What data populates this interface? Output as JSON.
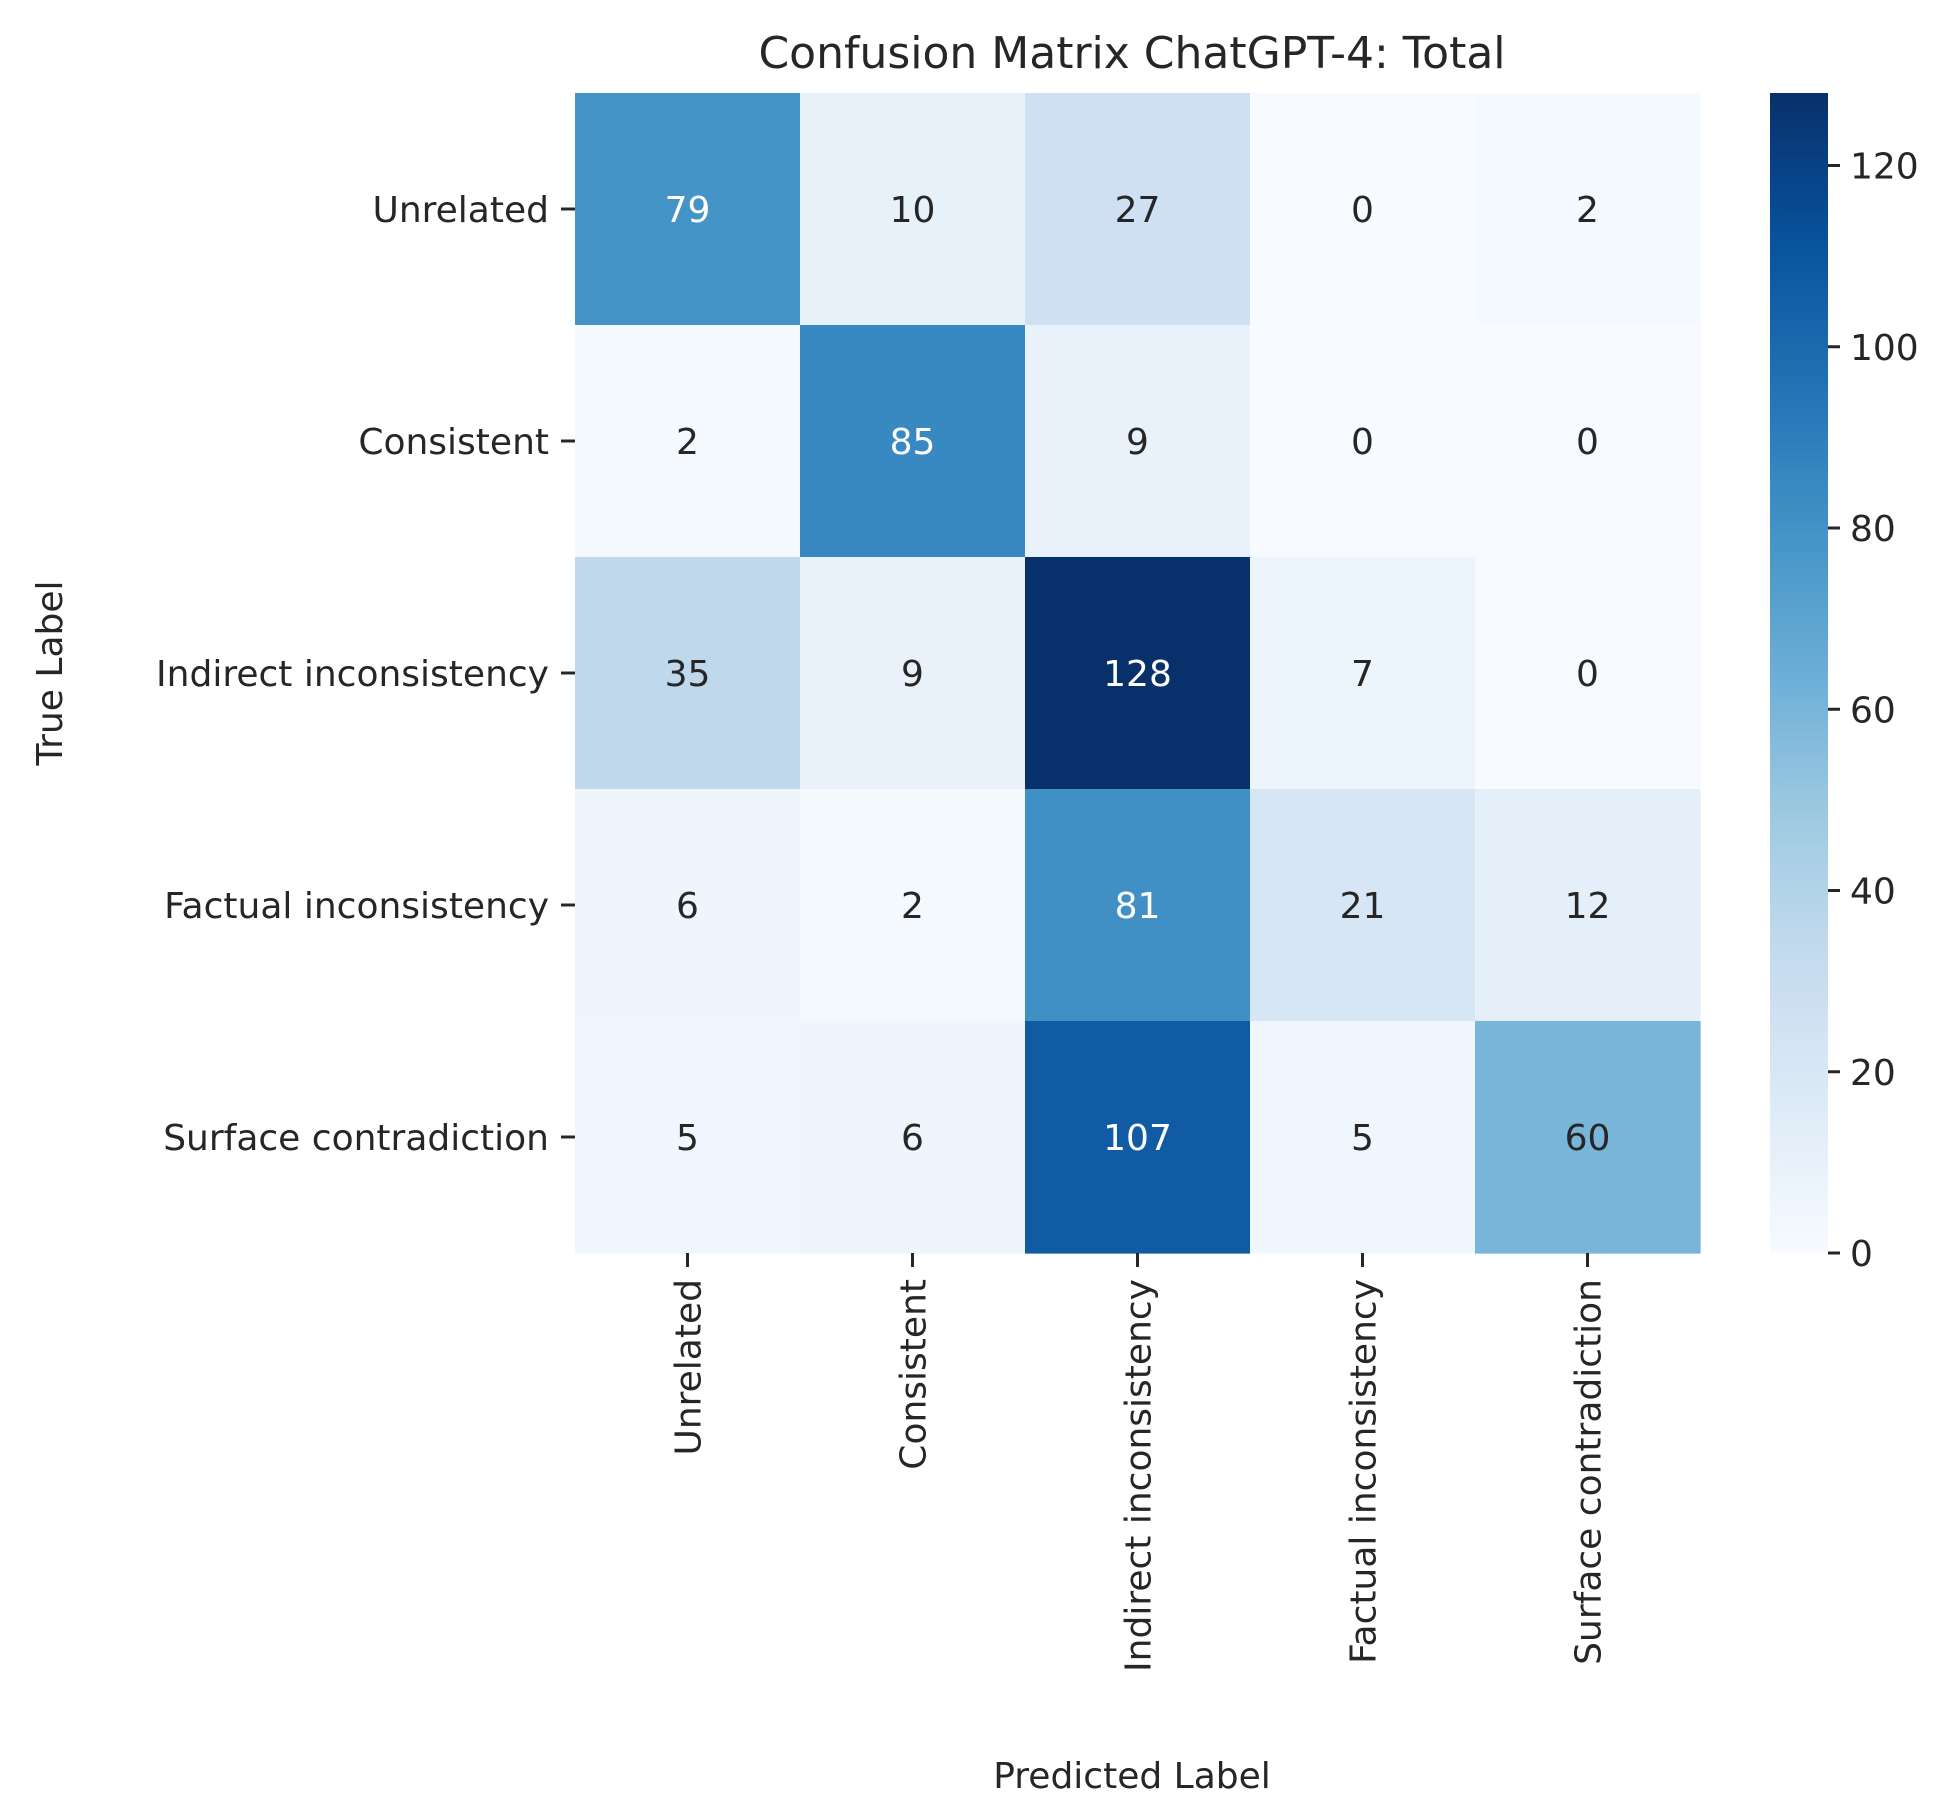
{
  "chart_data": {
    "type": "heatmap",
    "title": "Confusion Matrix ChatGPT-4: Total",
    "xlabel": "Predicted Label",
    "ylabel": "True Label",
    "x_categories": [
      "Unrelated",
      "Consistent",
      "Indirect inconsistency",
      "Factual inconsistency",
      "Surface contradiction"
    ],
    "y_categories": [
      "Unrelated",
      "Consistent",
      "Indirect inconsistency",
      "Factual inconsistency",
      "Surface contradiction"
    ],
    "values": [
      [
        79,
        10,
        27,
        0,
        2
      ],
      [
        2,
        85,
        9,
        0,
        0
      ],
      [
        35,
        9,
        128,
        7,
        0
      ],
      [
        6,
        2,
        81,
        21,
        12
      ],
      [
        5,
        6,
        107,
        5,
        60
      ]
    ],
    "colormap": "Blues",
    "vmin": 0,
    "vmax": 128,
    "colorbar_ticks": [
      0,
      20,
      40,
      60,
      80,
      100,
      120
    ],
    "annotations": true,
    "grid": false
  }
}
